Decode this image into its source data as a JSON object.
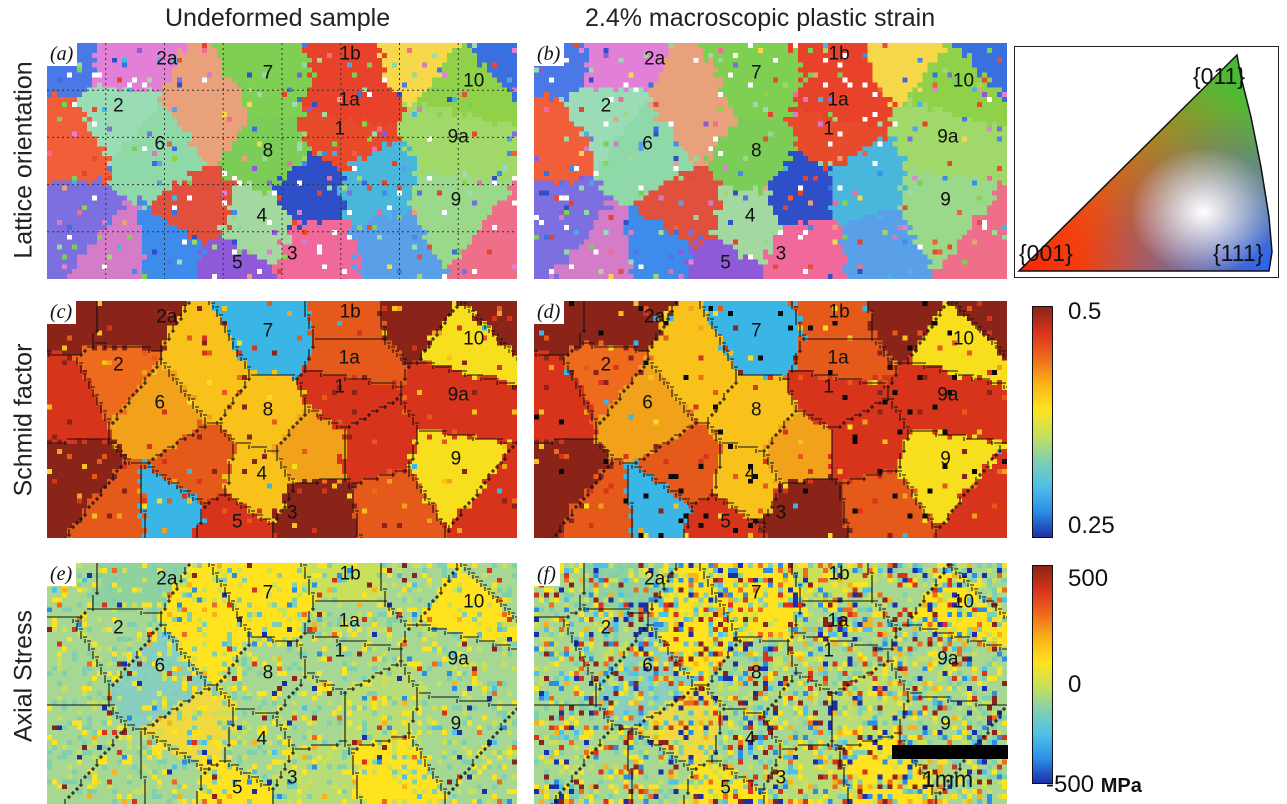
{
  "figure": {
    "col_titles": [
      "Undeformed sample",
      "2.4% macroscopic plastic strain"
    ],
    "row_labels": [
      "Lattice orientation",
      "Schmid factor",
      "Axial Stress"
    ],
    "panels": [
      "(a)",
      "(b)",
      "(c)",
      "(d)",
      "(e)",
      "(f)"
    ],
    "grain_labels": [
      "2a",
      "1b",
      "7",
      "10",
      "2",
      "1a",
      "1",
      "6",
      "8",
      "9a",
      "4",
      "9",
      "5",
      "3"
    ],
    "ipf_labels": {
      "top": "{011}",
      "left": "{001}",
      "right": "{111}"
    },
    "schmid_colorbar": {
      "max": "0.5",
      "min": "0.25",
      "colors": [
        "#1c2fa8",
        "#2a8ee6",
        "#4fc0e8",
        "#7fd0b0",
        "#c8e05a",
        "#ffe31f",
        "#f9b21a",
        "#ee6a1c",
        "#d8331b",
        "#8a2418"
      ]
    },
    "stress_colorbar": {
      "max": "500",
      "mid": "0",
      "min": "-500",
      "unit": "MPa",
      "colors": [
        "#1c2fa8",
        "#2a8ee6",
        "#4fc0e8",
        "#7fd0b0",
        "#c8e05a",
        "#ffe31f",
        "#f9b21a",
        "#ee6a1c",
        "#d8331b",
        "#8a2418"
      ]
    },
    "scale_bar": "1mm"
  }
}
